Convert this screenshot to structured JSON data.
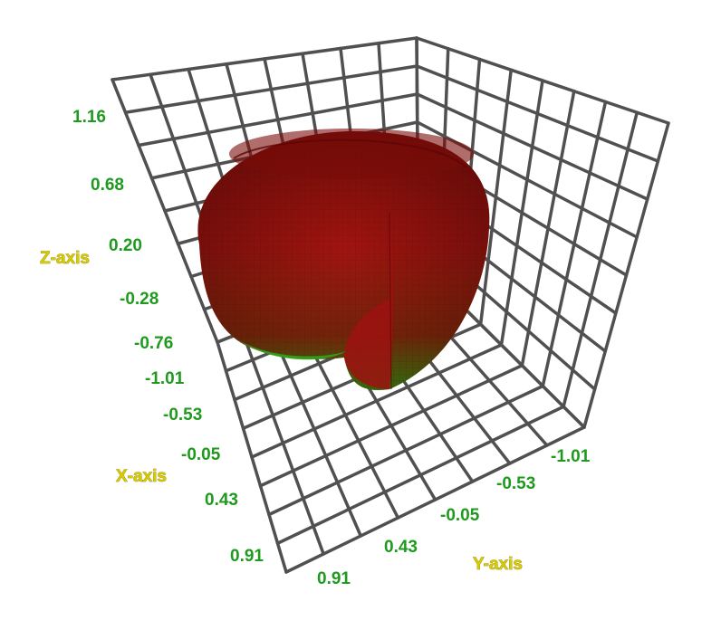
{
  "chart_data": {
    "type": "surface3d",
    "title": "",
    "axes": {
      "x": {
        "label": "X-axis",
        "ticks": [
          "-1.01",
          "-0.53",
          "-0.05",
          "0.43",
          "0.91"
        ],
        "range": [
          -1.01,
          0.91
        ]
      },
      "y": {
        "label": "Y-axis",
        "ticks": [
          "0.91",
          "0.43",
          "-0.05",
          "-0.53",
          "-1.01"
        ],
        "range": [
          -1.01,
          0.91
        ]
      },
      "z": {
        "label": "Z-axis",
        "ticks": [
          "1.16",
          "0.68",
          "0.20",
          "-0.28",
          "-0.76"
        ],
        "range": [
          -0.76,
          1.16
        ]
      }
    },
    "surface": {
      "shape": "open spherical shell (ring-like bowl) with a vertical wedge cut out",
      "colormap": "height: green at bottom to dark red at top",
      "colors": {
        "low": "#2aa51a",
        "high": "#a00d0a"
      }
    },
    "grid": true,
    "colors": {
      "grid": "#505050",
      "tick_labels": "#1e9a1e",
      "axis_labels": "#d8cc00"
    }
  }
}
